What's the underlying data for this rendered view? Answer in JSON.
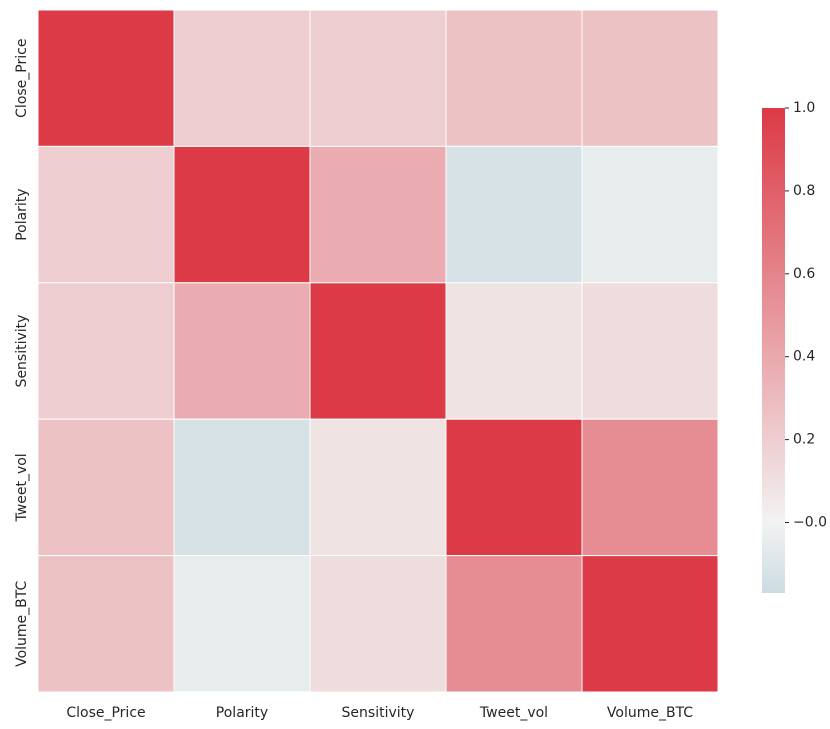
{
  "chart_data": {
    "type": "heatmap",
    "title": "",
    "xlabel": "",
    "ylabel": "",
    "row_labels": [
      "Close_Price",
      "Polarity",
      "Sensitivity",
      "Tweet_vol",
      "Volume_BTC"
    ],
    "col_labels": [
      "Close_Price",
      "Polarity",
      "Sensitivity",
      "Tweet_vol",
      "Volume_BTC"
    ],
    "values": [
      [
        1.0,
        0.2,
        0.2,
        0.26,
        0.26
      ],
      [
        0.2,
        1.0,
        0.38,
        -0.12,
        -0.05
      ],
      [
        0.2,
        0.38,
        1.0,
        0.08,
        0.12
      ],
      [
        0.26,
        -0.12,
        0.08,
        1.0,
        0.55
      ],
      [
        0.26,
        -0.05,
        0.12,
        0.55,
        1.0
      ]
    ],
    "vmin": -0.17,
    "vmax": 1.0,
    "colorbar": {
      "ticks": [
        -0.0,
        0.2,
        0.4,
        0.6,
        0.8,
        1.0
      ],
      "tick_labels": [
        "−0.0",
        "0.2",
        "0.4",
        "0.6",
        "0.8",
        "1.0"
      ]
    },
    "colors": {
      "low": "#ccdce2",
      "mid": "#f2f2f2",
      "high": "#dc3a46",
      "grid_line": "#ffffff",
      "text": "#262626"
    }
  }
}
